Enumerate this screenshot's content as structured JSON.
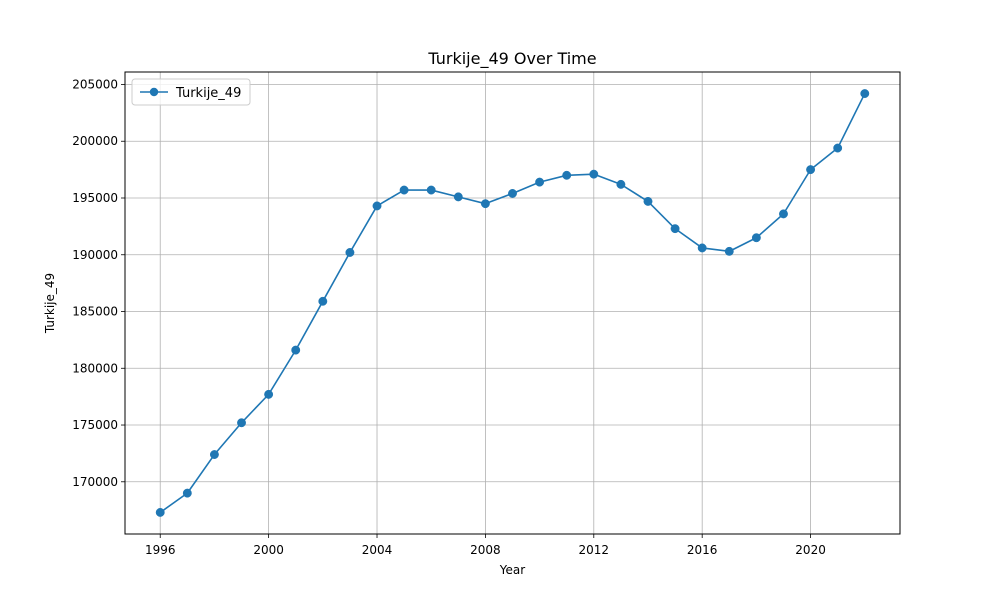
{
  "chart_data": {
    "type": "line",
    "title": "Turkije_49 Over Time",
    "xlabel": "Year",
    "ylabel": "Turkije_49",
    "xlim": [
      1994.7,
      2023.3
    ],
    "ylim": [
      165400,
      206100
    ],
    "x_ticks": [
      1996,
      2000,
      2004,
      2008,
      2012,
      2016,
      2020
    ],
    "x_tick_labels": [
      "1996",
      "2000",
      "2004",
      "2008",
      "2012",
      "2016",
      "2020"
    ],
    "y_ticks": [
      170000,
      175000,
      180000,
      185000,
      190000,
      195000,
      200000,
      205000
    ],
    "y_tick_labels": [
      "170000",
      "175000",
      "180000",
      "185000",
      "190000",
      "195000",
      "200000",
      "205000"
    ],
    "grid": true,
    "legend_position": "top-left",
    "series": [
      {
        "name": "Turkije_49",
        "color": "#1f77b4",
        "marker": "circle",
        "x": [
          1996,
          1997,
          1998,
          1999,
          2000,
          2001,
          2002,
          2003,
          2004,
          2005,
          2006,
          2007,
          2008,
          2009,
          2010,
          2011,
          2012,
          2013,
          2014,
          2015,
          2016,
          2017,
          2018,
          2019,
          2020,
          2021,
          2022
        ],
        "y": [
          167300,
          169000,
          172400,
          175200,
          177700,
          181600,
          185900,
          190200,
          194300,
          195700,
          195700,
          195100,
          194500,
          195400,
          196400,
          197000,
          197100,
          196200,
          194700,
          192300,
          190600,
          190300,
          191500,
          193600,
          197500,
          199400,
          204200
        ]
      }
    ]
  }
}
